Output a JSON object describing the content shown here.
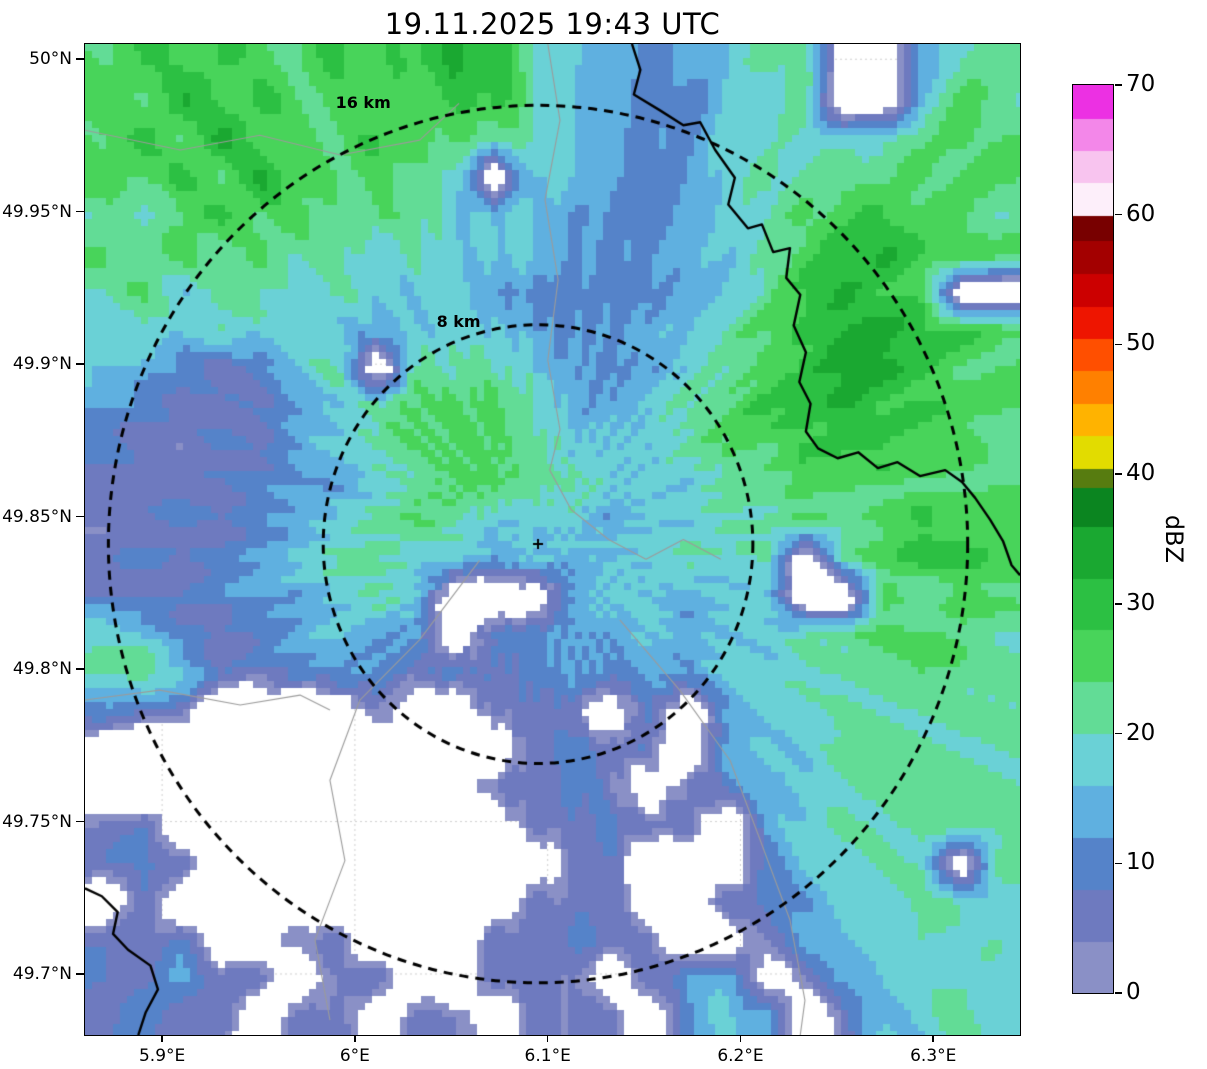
{
  "chart_data": {
    "type": "heatmap",
    "title": "19.11.2025 19:43 UTC",
    "extent": {
      "lon_min": 5.86,
      "lon_max": 6.345,
      "lat_min": 49.68,
      "lat_max": 50.005
    },
    "x_ticks": [
      {
        "label": "5.9°E",
        "value": 5.9
      },
      {
        "label": "6°E",
        "value": 6.0
      },
      {
        "label": "6.1°E",
        "value": 6.1
      },
      {
        "label": "6.2°E",
        "value": 6.2
      },
      {
        "label": "6.3°E",
        "value": 6.3
      }
    ],
    "y_ticks": [
      {
        "label": "50°N",
        "value": 50.0
      },
      {
        "label": "49.95°N",
        "value": 49.95
      },
      {
        "label": "49.9°N",
        "value": 49.9
      },
      {
        "label": "49.85°N",
        "value": 49.85
      },
      {
        "label": "49.8°N",
        "value": 49.8
      },
      {
        "label": "49.75°N",
        "value": 49.75
      },
      {
        "label": "49.7°N",
        "value": 49.7
      }
    ],
    "radar_center": {
      "lon": 6.095,
      "lat": 49.841
    },
    "range_rings": [
      {
        "label": "8 km",
        "km": 8
      },
      {
        "label": "16 km",
        "km": 16
      }
    ],
    "colorbar": {
      "label": "dBZ",
      "min": 0,
      "max": 70,
      "ticks": [
        0,
        10,
        20,
        30,
        40,
        50,
        60,
        70
      ],
      "bands": [
        [
          0,
          4,
          "#8a90c6"
        ],
        [
          4,
          8,
          "#6e7abf"
        ],
        [
          8,
          12,
          "#5583c9"
        ],
        [
          12,
          16,
          "#5fb0e0"
        ],
        [
          16,
          20,
          "#6ad1d6"
        ],
        [
          20,
          24,
          "#62dc96"
        ],
        [
          24,
          28,
          "#48d45a"
        ],
        [
          28,
          32,
          "#2cc043"
        ],
        [
          32,
          36,
          "#1aa831"
        ],
        [
          36,
          39,
          "#0b8520"
        ],
        [
          39,
          40.5,
          "#577c10"
        ],
        [
          40.5,
          43,
          "#e2dc00"
        ],
        [
          43,
          45.5,
          "#ffb300"
        ],
        [
          45.5,
          48,
          "#ff8000"
        ],
        [
          48,
          50.5,
          "#ff4f00"
        ],
        [
          50.5,
          53,
          "#ee1500"
        ],
        [
          53,
          55.5,
          "#cc0000"
        ],
        [
          55.5,
          58,
          "#a30000"
        ],
        [
          58,
          60,
          "#780000"
        ],
        [
          60,
          62.5,
          "#fdeffa"
        ],
        [
          62.5,
          65,
          "#f8c4ef"
        ],
        [
          65,
          67.5,
          "#f387e9"
        ],
        [
          67.5,
          70,
          "#ec30e3"
        ]
      ],
      "no_echo_color": "#ffffff"
    },
    "grid": {
      "units": "dBZ",
      "cols": 24,
      "rows": 26,
      "values": [
        [
          25,
          29,
          25,
          29,
          25,
          25,
          29,
          25,
          29,
          33,
          29,
          21,
          17,
          13,
          10,
          13,
          17,
          21,
          21,
          null,
          null,
          13,
          21,
          21
        ],
        [
          25,
          25,
          33,
          25,
          29,
          25,
          25,
          25,
          25,
          29,
          29,
          21,
          17,
          13,
          10,
          10,
          17,
          17,
          21,
          null,
          null,
          17,
          25,
          21
        ],
        [
          25,
          29,
          25,
          33,
          25,
          25,
          25,
          29,
          25,
          25,
          21,
          21,
          17,
          13,
          10,
          13,
          17,
          17,
          21,
          17,
          21,
          21,
          25,
          25
        ],
        [
          25,
          25,
          29,
          25,
          33,
          25,
          25,
          25,
          21,
          21,
          null,
          17,
          17,
          13,
          10,
          13,
          17,
          21,
          21,
          25,
          21,
          25,
          25,
          25
        ],
        [
          21,
          17,
          25,
          29,
          25,
          25,
          21,
          25,
          21,
          17,
          17,
          17,
          13,
          10,
          10,
          13,
          17,
          21,
          25,
          25,
          29,
          25,
          25,
          21
        ],
        [
          25,
          21,
          25,
          21,
          25,
          21,
          21,
          17,
          21,
          17,
          17,
          17,
          13,
          10,
          13,
          13,
          17,
          21,
          25,
          29,
          33,
          29,
          29,
          25
        ],
        [
          21,
          25,
          17,
          21,
          21,
          17,
          21,
          17,
          17,
          17,
          13,
          10,
          10,
          10,
          10,
          13,
          17,
          21,
          29,
          33,
          29,
          25,
          null,
          null
        ],
        [
          17,
          21,
          17,
          21,
          17,
          17,
          17,
          13,
          17,
          17,
          17,
          13,
          10,
          13,
          13,
          17,
          21,
          25,
          29,
          33,
          33,
          29,
          29,
          25
        ],
        [
          17,
          13,
          10,
          6,
          10,
          17,
          21,
          null,
          21,
          21,
          21,
          17,
          13,
          10,
          13,
          17,
          21,
          25,
          29,
          33,
          33,
          29,
          25,
          25
        ],
        [
          13,
          10,
          6,
          6,
          6,
          13,
          17,
          21,
          25,
          25,
          25,
          21,
          13,
          13,
          17,
          21,
          25,
          29,
          29,
          33,
          29,
          29,
          25,
          25
        ],
        [
          10,
          6,
          6,
          10,
          6,
          13,
          17,
          21,
          25,
          25,
          25,
          21,
          17,
          17,
          17,
          21,
          25,
          25,
          29,
          29,
          29,
          25,
          25,
          21
        ],
        [
          6,
          6,
          6,
          6,
          10,
          13,
          13,
          17,
          21,
          25,
          25,
          21,
          21,
          17,
          17,
          17,
          21,
          21,
          25,
          25,
          25,
          25,
          25,
          25
        ],
        [
          6,
          6,
          10,
          6,
          10,
          13,
          17,
          21,
          25,
          21,
          17,
          17,
          17,
          13,
          17,
          17,
          21,
          21,
          25,
          21,
          25,
          29,
          25,
          25
        ],
        [
          6,
          10,
          6,
          10,
          13,
          17,
          21,
          21,
          17,
          17,
          13,
          17,
          13,
          17,
          17,
          21,
          17,
          21,
          null,
          21,
          25,
          29,
          29,
          25
        ],
        [
          6,
          6,
          6,
          10,
          13,
          13,
          17,
          21,
          17,
          null,
          null,
          null,
          13,
          17,
          17,
          13,
          17,
          17,
          null,
          null,
          25,
          21,
          25,
          25
        ],
        [
          21,
          17,
          10,
          6,
          10,
          13,
          17,
          13,
          13,
          null,
          10,
          10,
          13,
          13,
          17,
          13,
          17,
          17,
          21,
          21,
          25,
          25,
          25,
          21
        ],
        [
          21,
          25,
          17,
          6,
          6,
          10,
          13,
          10,
          6,
          10,
          6,
          10,
          13,
          10,
          13,
          13,
          17,
          17,
          21,
          21,
          21,
          25,
          21,
          21
        ],
        [
          10,
          6,
          6,
          null,
          null,
          null,
          null,
          6,
          null,
          null,
          6,
          6,
          6,
          null,
          10,
          null,
          13,
          17,
          17,
          21,
          21,
          21,
          21,
          21
        ],
        [
          null,
          null,
          null,
          null,
          null,
          null,
          null,
          null,
          null,
          null,
          null,
          6,
          10,
          6,
          6,
          null,
          13,
          17,
          17,
          21,
          21,
          21,
          21,
          21
        ],
        [
          null,
          null,
          null,
          null,
          null,
          null,
          null,
          null,
          null,
          null,
          6,
          6,
          10,
          6,
          null,
          6,
          10,
          13,
          17,
          21,
          21,
          21,
          21,
          21
        ],
        [
          6,
          6,
          null,
          null,
          null,
          null,
          null,
          null,
          null,
          null,
          null,
          6,
          6,
          10,
          6,
          6,
          null,
          13,
          17,
          21,
          21,
          21,
          21,
          21
        ],
        [
          6,
          10,
          6,
          null,
          null,
          null,
          null,
          null,
          null,
          null,
          null,
          null,
          6,
          6,
          null,
          null,
          null,
          10,
          17,
          17,
          21,
          21,
          null,
          21
        ],
        [
          null,
          6,
          null,
          null,
          null,
          null,
          null,
          null,
          null,
          null,
          null,
          6,
          6,
          6,
          null,
          null,
          6,
          10,
          13,
          17,
          17,
          21,
          21,
          17
        ],
        [
          6,
          6,
          10,
          null,
          null,
          6,
          6,
          null,
          null,
          null,
          6,
          6,
          10,
          6,
          6,
          null,
          null,
          6,
          13,
          17,
          17,
          21,
          17,
          21
        ],
        [
          10,
          6,
          13,
          6,
          6,
          null,
          6,
          6,
          null,
          null,
          6,
          6,
          6,
          null,
          6,
          13,
          17,
          null,
          6,
          13,
          17,
          17,
          21,
          17
        ],
        [
          6,
          10,
          6,
          6,
          null,
          6,
          6,
          null,
          6,
          6,
          null,
          6,
          6,
          6,
          null,
          13,
          17,
          13,
          null,
          6,
          17,
          17,
          21,
          17
        ]
      ]
    },
    "borders_black": [
      [
        [
          0.585,
          0.0
        ],
        [
          0.594,
          0.026
        ],
        [
          0.587,
          0.051
        ],
        [
          0.615,
          0.067
        ],
        [
          0.64,
          0.082
        ],
        [
          0.658,
          0.079
        ],
        [
          0.674,
          0.107
        ],
        [
          0.695,
          0.135
        ],
        [
          0.688,
          0.162
        ],
        [
          0.709,
          0.186
        ],
        [
          0.724,
          0.182
        ],
        [
          0.736,
          0.21
        ],
        [
          0.754,
          0.206
        ],
        [
          0.75,
          0.236
        ],
        [
          0.765,
          0.253
        ],
        [
          0.758,
          0.284
        ],
        [
          0.771,
          0.311
        ],
        [
          0.764,
          0.341
        ],
        [
          0.776,
          0.363
        ],
        [
          0.771,
          0.391
        ],
        [
          0.784,
          0.408
        ],
        [
          0.805,
          0.418
        ],
        [
          0.827,
          0.412
        ],
        [
          0.848,
          0.428
        ],
        [
          0.869,
          0.422
        ],
        [
          0.893,
          0.436
        ],
        [
          0.92,
          0.43
        ],
        [
          0.938,
          0.442
        ],
        [
          0.952,
          0.458
        ],
        [
          0.968,
          0.48
        ],
        [
          0.982,
          0.502
        ],
        [
          0.991,
          0.526
        ],
        [
          1.0,
          0.536
        ]
      ],
      [
        [
          0.0,
          0.852
        ],
        [
          0.018,
          0.86
        ],
        [
          0.035,
          0.876
        ],
        [
          0.03,
          0.898
        ],
        [
          0.046,
          0.914
        ],
        [
          0.07,
          0.93
        ],
        [
          0.078,
          0.954
        ],
        [
          0.065,
          0.977
        ],
        [
          0.057,
          1.0
        ]
      ]
    ],
    "boundaries_gray": [
      [
        [
          0.495,
          0.0
        ],
        [
          0.508,
          0.077
        ],
        [
          0.492,
          0.157
        ],
        [
          0.506,
          0.238
        ],
        [
          0.495,
          0.319
        ],
        [
          0.508,
          0.389
        ],
        [
          0.497,
          0.43
        ]
      ],
      [
        [
          0.422,
          0.521
        ],
        [
          0.358,
          0.601
        ],
        [
          0.294,
          0.662
        ],
        [
          0.262,
          0.743
        ],
        [
          0.278,
          0.824
        ],
        [
          0.246,
          0.904
        ],
        [
          0.262,
          0.985
        ]
      ],
      [
        [
          0.0,
          0.662
        ],
        [
          0.08,
          0.652
        ],
        [
          0.166,
          0.667
        ],
        [
          0.23,
          0.657
        ],
        [
          0.262,
          0.672
        ]
      ],
      [
        [
          0.572,
          0.581
        ],
        [
          0.636,
          0.652
        ],
        [
          0.69,
          0.723
        ],
        [
          0.722,
          0.803
        ],
        [
          0.754,
          0.884
        ],
        [
          0.77,
          0.965
        ],
        [
          0.765,
          1.0
        ]
      ],
      [
        [
          0.0,
          0.087
        ],
        [
          0.102,
          0.107
        ],
        [
          0.187,
          0.092
        ],
        [
          0.273,
          0.112
        ],
        [
          0.358,
          0.097
        ],
        [
          0.4,
          0.06
        ]
      ],
      [
        [
          0.497,
          0.43
        ],
        [
          0.52,
          0.47
        ],
        [
          0.56,
          0.5
        ],
        [
          0.6,
          0.52
        ],
        [
          0.64,
          0.5
        ],
        [
          0.68,
          0.52
        ]
      ]
    ]
  }
}
